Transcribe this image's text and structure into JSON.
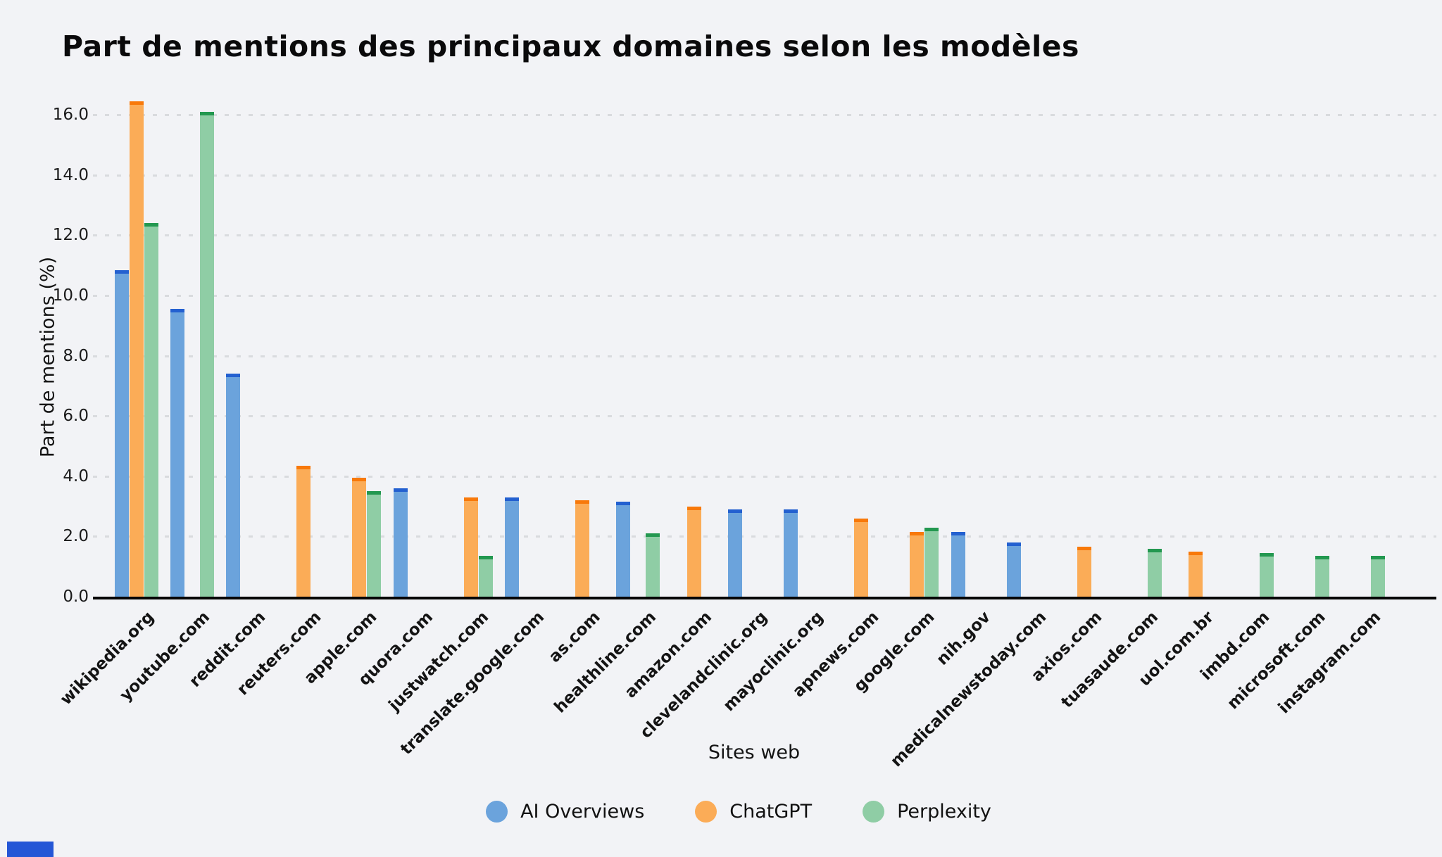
{
  "title": "Part de mentions des principaux domaines selon les modèles",
  "x_axis_title": "Sites web",
  "y_axis_title": "Part de mentions (%)",
  "y_ticks": [
    {
      "label": "0.0",
      "value": 0
    },
    {
      "label": "2.0",
      "value": 2
    },
    {
      "label": "4.0",
      "value": 4
    },
    {
      "label": "6.0",
      "value": 6
    },
    {
      "label": "8.0",
      "value": 8
    },
    {
      "label": "10.0",
      "value": 10
    },
    {
      "label": "12.0",
      "value": 12
    },
    {
      "label": "14.0",
      "value": 14
    },
    {
      "label": "16.0",
      "value": 16
    }
  ],
  "colors": {
    "background": "#f2f3f6",
    "grid": "#d9dbde",
    "axis": "#060606",
    "text": "#141414",
    "bottom_mark": "#2456d6"
  },
  "chart_data": {
    "type": "bar",
    "title": "Part de mentions des principaux domaines selon les modèles",
    "xlabel": "Sites web",
    "ylabel": "Part de mentions (%)",
    "ylim": [
      0,
      16.8
    ],
    "grid": "horizontal-dotted",
    "legend_position": "bottom-center",
    "categories": [
      "wikipedia.org",
      "youtube.com",
      "reddit.com",
      "reuters.com",
      "apple.com",
      "quora.com",
      "justwatch.com",
      "translate.google.com",
      "as.com",
      "healthline.com",
      "amazon.com",
      "clevelandclinic.org",
      "mayoclinic.org",
      "apnews.com",
      "google.com",
      "nih.gov",
      "medicalnewstoday.com",
      "axios.com",
      "tuasaude.com",
      "uol.com.br",
      "imbd.com",
      "microsoft.com",
      "instagram.com"
    ],
    "series": [
      {
        "name": "AI Overviews",
        "color": "#6ba3dc",
        "cap_color": "#2360d0",
        "values": [
          10.85,
          9.55,
          7.4,
          null,
          null,
          3.6,
          null,
          3.3,
          null,
          3.15,
          null,
          2.9,
          2.9,
          null,
          null,
          2.15,
          1.8,
          null,
          null,
          null,
          null,
          null,
          null
        ]
      },
      {
        "name": "ChatGPT",
        "color": "#fbac57",
        "cap_color": "#f8790a",
        "values": [
          16.45,
          null,
          null,
          4.35,
          3.95,
          null,
          3.3,
          null,
          3.2,
          null,
          3.0,
          null,
          null,
          2.6,
          2.15,
          null,
          null,
          1.65,
          null,
          1.5,
          null,
          null,
          null
        ]
      },
      {
        "name": "Perplexity",
        "color": "#8fcda5",
        "cap_color": "#239850",
        "values": [
          12.4,
          16.1,
          null,
          null,
          3.5,
          null,
          1.35,
          null,
          null,
          2.1,
          null,
          null,
          null,
          null,
          2.3,
          null,
          null,
          null,
          1.6,
          null,
          1.45,
          1.35,
          1.35
        ]
      }
    ]
  }
}
